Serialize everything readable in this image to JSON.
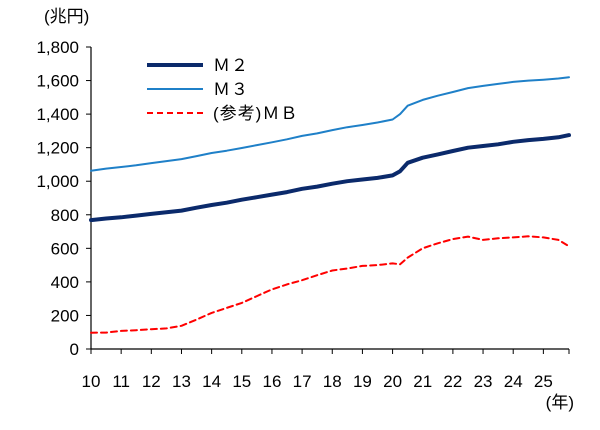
{
  "chart_data": {
    "type": "line",
    "y_unit": "(兆円)",
    "x_unit": "(年)",
    "ylim": [
      0,
      1800
    ],
    "yticks": [
      "0",
      "200",
      "400",
      "600",
      "800",
      "1,000",
      "1,200",
      "1,400",
      "1,600",
      "1,800"
    ],
    "ytick_values": [
      0,
      200,
      400,
      600,
      800,
      1000,
      1200,
      1400,
      1600,
      1800
    ],
    "xlim": [
      2010,
      2025.85
    ],
    "xtick_labels": [
      "10",
      "11",
      "12",
      "13",
      "14",
      "15",
      "16",
      "17",
      "18",
      "19",
      "20",
      "21",
      "22",
      "23",
      "24",
      "25"
    ],
    "xtick_values": [
      2010,
      2011,
      2012,
      2013,
      2014,
      2015,
      2016,
      2017,
      2018,
      2019,
      2020,
      2021,
      2022,
      2023,
      2024,
      2025
    ],
    "grid": false,
    "legend_position": "top-left",
    "x": [
      2010,
      2010.5,
      2011,
      2011.5,
      2012,
      2012.5,
      2013,
      2013.5,
      2014,
      2014.5,
      2015,
      2015.5,
      2016,
      2016.5,
      2017,
      2017.5,
      2018,
      2018.5,
      2019,
      2019.5,
      2020,
      2020.25,
      2020.5,
      2021,
      2021.5,
      2022,
      2022.5,
      2023,
      2023.5,
      2024,
      2024.5,
      2025,
      2025.5,
      2025.85
    ],
    "series": [
      {
        "name": "Ｍ２",
        "color": "#0b2a6b",
        "dash": "solid",
        "width": 4,
        "values": [
          768,
          778,
          785,
          795,
          805,
          815,
          825,
          842,
          858,
          872,
          890,
          905,
          920,
          935,
          955,
          968,
          985,
          1000,
          1010,
          1020,
          1035,
          1060,
          1110,
          1140,
          1160,
          1180,
          1200,
          1210,
          1220,
          1235,
          1245,
          1252,
          1262,
          1275
        ]
      },
      {
        "name": "Ｍ３",
        "color": "#1f80c8",
        "dash": "solid",
        "width": 2,
        "values": [
          1062,
          1075,
          1085,
          1095,
          1108,
          1120,
          1132,
          1150,
          1168,
          1182,
          1198,
          1215,
          1232,
          1250,
          1270,
          1285,
          1305,
          1322,
          1335,
          1350,
          1368,
          1400,
          1450,
          1485,
          1510,
          1532,
          1555,
          1568,
          1580,
          1592,
          1600,
          1605,
          1612,
          1620
        ]
      },
      {
        "name": "(参考)ＭＢ",
        "color": "#ff0000",
        "dash": "dashed",
        "width": 2,
        "values": [
          97,
          98,
          108,
          112,
          118,
          123,
          138,
          175,
          215,
          245,
          275,
          315,
          355,
          385,
          410,
          440,
          468,
          480,
          495,
          500,
          510,
          505,
          545,
          600,
          630,
          655,
          670,
          650,
          660,
          665,
          672,
          665,
          650,
          612
        ]
      }
    ]
  }
}
